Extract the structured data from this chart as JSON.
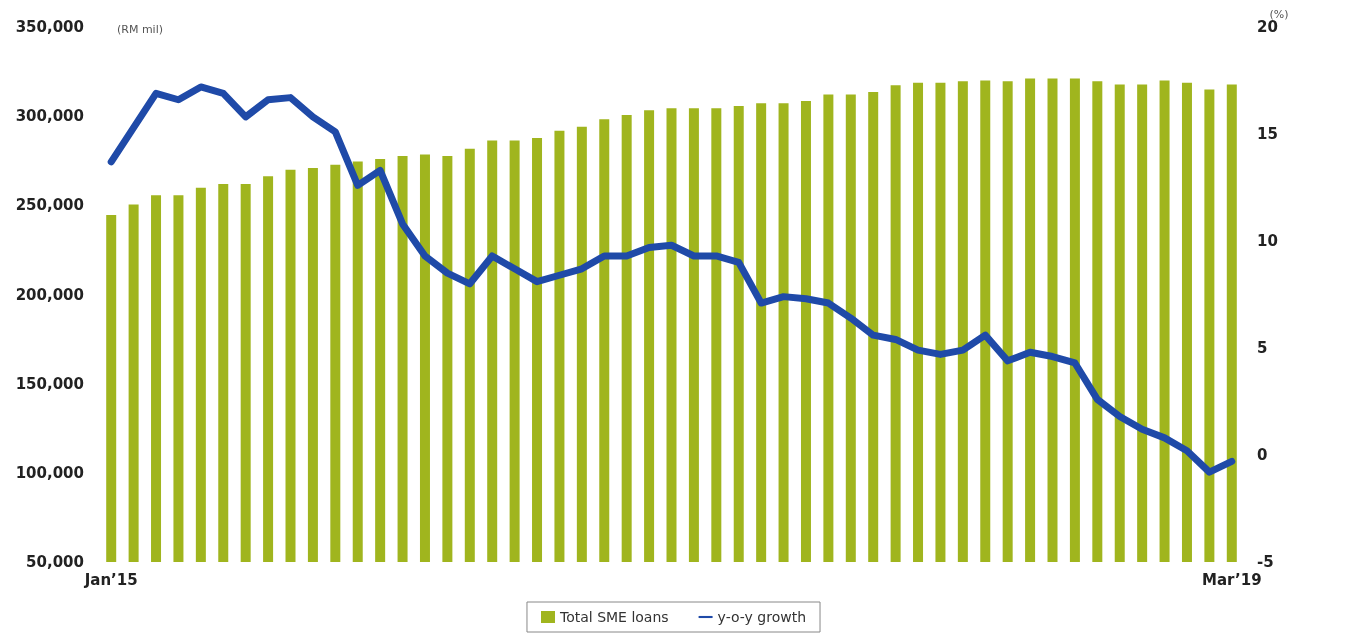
{
  "chart_data": {
    "type": "bar",
    "categories": [
      "Jan’15",
      null,
      null,
      null,
      null,
      null,
      null,
      null,
      null,
      null,
      null,
      null,
      null,
      null,
      null,
      null,
      null,
      null,
      null,
      null,
      null,
      null,
      null,
      null,
      null,
      null,
      null,
      null,
      null,
      null,
      null,
      null,
      null,
      null,
      null,
      null,
      null,
      null,
      null,
      null,
      null,
      null,
      null,
      null,
      null,
      null,
      null,
      null,
      null,
      null,
      "Mar’19"
    ],
    "series": [
      {
        "name": "Total SME loans",
        "color": "#a0b51e",
        "values": [
          244600,
          250500,
          255700,
          255700,
          259800,
          262000,
          262000,
          266300,
          270000,
          271000,
          272800,
          274600,
          276000,
          277600,
          278500,
          277600,
          281700,
          286300,
          286300,
          287800,
          291800,
          294000,
          298300,
          300700,
          303300,
          304400,
          304400,
          304400,
          305700,
          307200,
          307200,
          308500,
          312200,
          312200,
          313500,
          317400,
          318700,
          318700,
          319600,
          320000,
          319600,
          321100,
          321100,
          321100,
          319600,
          317800,
          317800,
          320000,
          318800,
          315000,
          317800
        ]
      },
      {
        "name": "y-o-y growth",
        "type": "line",
        "axis": "y2",
        "color": "#1f4aa8",
        "values": [
          13.7,
          15.3,
          16.9,
          16.6,
          17.2,
          16.9,
          15.8,
          16.6,
          16.7,
          15.8,
          15.1,
          12.6,
          13.3,
          10.8,
          9.3,
          8.5,
          8.0,
          9.3,
          8.7,
          8.1,
          8.4,
          8.7,
          9.3,
          9.3,
          9.7,
          9.8,
          9.3,
          9.3,
          9.0,
          7.1,
          7.4,
          7.3,
          7.1,
          6.4,
          5.6,
          5.4,
          4.9,
          4.7,
          4.9,
          5.6,
          4.4,
          4.8,
          4.6,
          4.3,
          2.6,
          1.8,
          1.2,
          0.8,
          0.2,
          -0.8,
          -0.3
        ]
      }
    ],
    "ylabel": "(RM mil)",
    "y2label": "(%)",
    "ylim": [
      50000,
      350000
    ],
    "yticks": [
      {
        "value": 50000,
        "label": "50,000"
      },
      {
        "value": 100000,
        "label": "100,000"
      },
      {
        "value": 150000,
        "label": "150,000"
      },
      {
        "value": 200000,
        "label": "200,000"
      },
      {
        "value": 250000,
        "label": "250,000"
      },
      {
        "value": 300000,
        "label": "300,000"
      },
      {
        "value": 350000,
        "label": "350,000"
      }
    ],
    "y2lim": [
      -5,
      20
    ],
    "y2ticks": [
      -5,
      0,
      5,
      10,
      15,
      20
    ],
    "legend": "bottom",
    "marker": "none",
    "line_style": "solid"
  }
}
